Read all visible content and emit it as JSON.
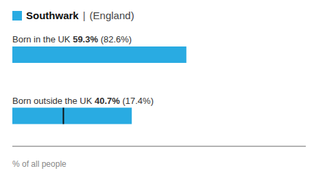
{
  "chart_data": {
    "type": "bar",
    "orientation": "horizontal",
    "legend": "upper left",
    "categories": [
      "Born in the UK",
      "Born outside the UK"
    ],
    "series": [
      {
        "name": "Southwark",
        "color": "#29abe2",
        "values": [
          59.3,
          40.7
        ],
        "value_labels": [
          "59.3%",
          "40.7%"
        ]
      }
    ],
    "data_labels": true,
    "england_values": [
      82.6,
      17.4
    ],
    "england_labels": [
      "(82.6%)",
      "(17.4%)"
    ],
    "england_marker": [
      false,
      true
    ],
    "england_color": "#111111",
    "annotations": [
      "|",
      "(England)"
    ],
    "xlabel": "% of all people",
    "xlim": [
      0,
      100
    ],
    "tick_labels": false,
    "grid": false
  }
}
